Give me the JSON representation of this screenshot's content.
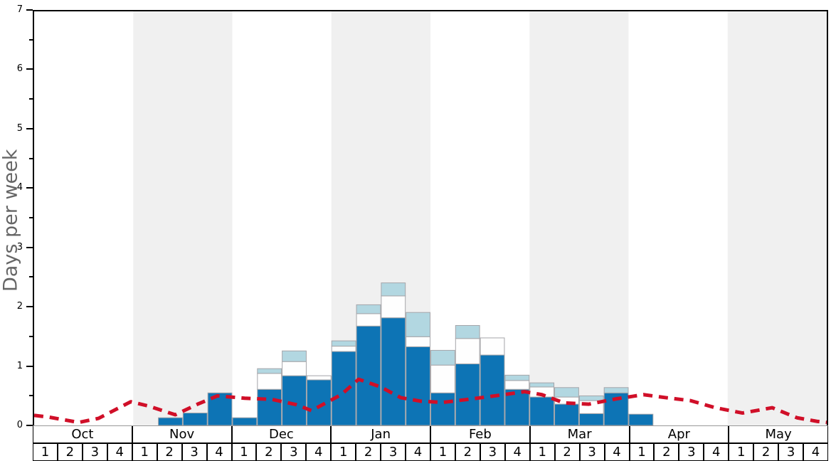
{
  "colors": {
    "bar_blue": "#0d74b5",
    "bar_white": "#fefefe",
    "bar_lightblue": "#b2d7e1",
    "bar_border": "#a5a5a9",
    "band_gray": "#f0f0f0",
    "line_red": "#d00f28",
    "axis_black": "#000000",
    "label_gray": "#666666"
  },
  "chart_data": {
    "type": "bar",
    "title": "",
    "xlabel": "",
    "ylabel": "Days per week",
    "ylim": [
      0,
      7
    ],
    "ytick_major": [
      "0",
      "1",
      "2",
      "3",
      "4",
      "5",
      "6",
      "7"
    ],
    "ytick_minor": [
      0.5,
      1.5,
      2.5,
      3.5,
      4.5,
      5.5,
      6.5
    ],
    "grid": "off",
    "legend": "none",
    "months": [
      {
        "label": "Oct",
        "weeks": [
          "1",
          "2",
          "3",
          "4"
        ],
        "band": "white"
      },
      {
        "label": "Nov",
        "weeks": [
          "1",
          "2",
          "3",
          "4"
        ],
        "band": "gray"
      },
      {
        "label": "Dec",
        "weeks": [
          "1",
          "2",
          "3",
          "4"
        ],
        "band": "white"
      },
      {
        "label": "Jan",
        "weeks": [
          "1",
          "2",
          "3",
          "4"
        ],
        "band": "gray"
      },
      {
        "label": "Feb",
        "weeks": [
          "1",
          "2",
          "3",
          "4"
        ],
        "band": "white"
      },
      {
        "label": "Mar",
        "weeks": [
          "1",
          "2",
          "3",
          "4"
        ],
        "band": "gray"
      },
      {
        "label": "Apr",
        "weeks": [
          "1",
          "2",
          "3",
          "4"
        ],
        "band": "white"
      },
      {
        "label": "May",
        "weeks": [
          "1",
          "2",
          "3",
          "4"
        ],
        "band": "gray"
      }
    ],
    "series": [
      {
        "name": "dark-blue-days",
        "color_key": "bar_blue",
        "values": [
          0,
          0,
          0,
          0,
          0,
          0.13,
          0.21,
          0.55,
          0.13,
          0.61,
          0.84,
          0.77,
          1.25,
          1.68,
          1.82,
          1.33,
          0.55,
          1.04,
          1.19,
          0.61,
          0.48,
          0.36,
          0.2,
          0.55,
          0.19,
          0,
          0,
          0,
          0,
          0,
          0,
          0
        ]
      },
      {
        "name": "white-days",
        "color_key": "bar_white",
        "values": [
          0,
          0,
          0,
          0,
          0,
          0,
          0,
          0,
          0,
          0.27,
          0.24,
          0.07,
          0.09,
          0.21,
          0.37,
          0.17,
          0.47,
          0.43,
          0.29,
          0.15,
          0.17,
          0.12,
          0.22,
          0,
          0,
          0,
          0,
          0,
          0,
          0,
          0,
          0
        ]
      },
      {
        "name": "light-blue-days",
        "color_key": "bar_lightblue",
        "values": [
          0,
          0,
          0,
          0,
          0,
          0,
          0,
          0,
          0,
          0.08,
          0.18,
          0,
          0.09,
          0.15,
          0.22,
          0.41,
          0.25,
          0.22,
          0,
          0.09,
          0.07,
          0.16,
          0.08,
          0.09,
          0,
          0,
          0,
          0,
          0,
          0,
          0,
          0
        ]
      }
    ],
    "trend_line": {
      "name": "red-dashed-average-line",
      "color_key": "line_red",
      "dash": [
        13,
        9
      ],
      "stroke_width": 5,
      "points": [
        [
          0,
          0.17
        ],
        [
          0.6,
          0.14
        ],
        [
          1.8,
          0.05
        ],
        [
          2.6,
          0.12
        ],
        [
          3.9,
          0.4
        ],
        [
          4.6,
          0.33
        ],
        [
          5.7,
          0.18
        ],
        [
          6.6,
          0.36
        ],
        [
          7.4,
          0.5
        ],
        [
          8.5,
          0.46
        ],
        [
          9.6,
          0.44
        ],
        [
          10.6,
          0.35
        ],
        [
          11.2,
          0.25
        ],
        [
          12.4,
          0.52
        ],
        [
          13.1,
          0.78
        ],
        [
          14.0,
          0.65
        ],
        [
          14.8,
          0.47
        ],
        [
          15.6,
          0.41
        ],
        [
          16.5,
          0.39
        ],
        [
          17.5,
          0.44
        ],
        [
          18.6,
          0.5
        ],
        [
          19.8,
          0.57
        ],
        [
          20.5,
          0.52
        ],
        [
          21.4,
          0.38
        ],
        [
          22.4,
          0.36
        ],
        [
          23.5,
          0.45
        ],
        [
          24.6,
          0.52
        ],
        [
          25.5,
          0.47
        ],
        [
          26.5,
          0.42
        ],
        [
          27.5,
          0.3
        ],
        [
          28.6,
          0.21
        ],
        [
          29.8,
          0.3
        ],
        [
          30.8,
          0.13
        ],
        [
          31.6,
          0.07
        ],
        [
          32,
          0.05
        ]
      ]
    }
  }
}
